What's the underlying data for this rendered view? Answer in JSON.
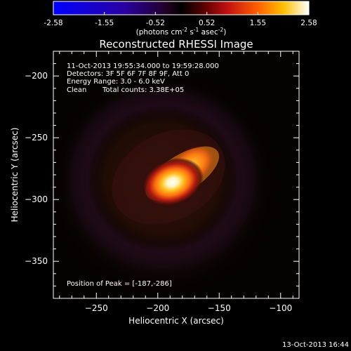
{
  "colorbar": {
    "ticks": [
      "-2.58",
      "-1.55",
      "-0.52",
      "0.52",
      "1.55",
      "2.58"
    ],
    "min": -2.58,
    "max": 2.58,
    "units_main": "(photons cm",
    "units_exp1": "-2",
    "units_mid": " s",
    "units_exp2": "-1",
    "units_mid2": " asec",
    "units_exp3": "-2",
    "units_end": ")",
    "colormap": "black-purple-red-yellow-white (with blue/negative end)"
  },
  "chart_data": {
    "type": "heatmap",
    "title": "Reconstructed RHESSI Image",
    "xlabel": "Heliocentric X (arcsec)",
    "ylabel": "Heliocentric Y (arcsec)",
    "xlim": [
      -285,
      -85
    ],
    "ylim": [
      -380,
      -180
    ],
    "xticks": [
      -250,
      -200,
      -150,
      -100
    ],
    "yticks": [
      -200,
      -250,
      -300,
      -350
    ],
    "sources": [
      {
        "x": -188,
        "y": -286,
        "peak": 2.58
      },
      {
        "x": -172,
        "y": -272,
        "peak": 1.9
      }
    ],
    "peak": [
      -187,
      -286
    ],
    "annotations": {
      "time_range": "11-Oct-2013 19:55:34.000 to 19:59:28.000",
      "detectors": "Detectors: 3F 5F 6F 7F 8F 9F, Att 0",
      "energy": "Energy Range: 3.0 - 6.0 keV",
      "clean_method": "Clean",
      "total_counts": "Total counts: 3.38E+05",
      "peak_label": "Position of Peak = [-187,-286]"
    }
  },
  "footer": {
    "timestamp": "13-Oct-2013 16:44"
  }
}
